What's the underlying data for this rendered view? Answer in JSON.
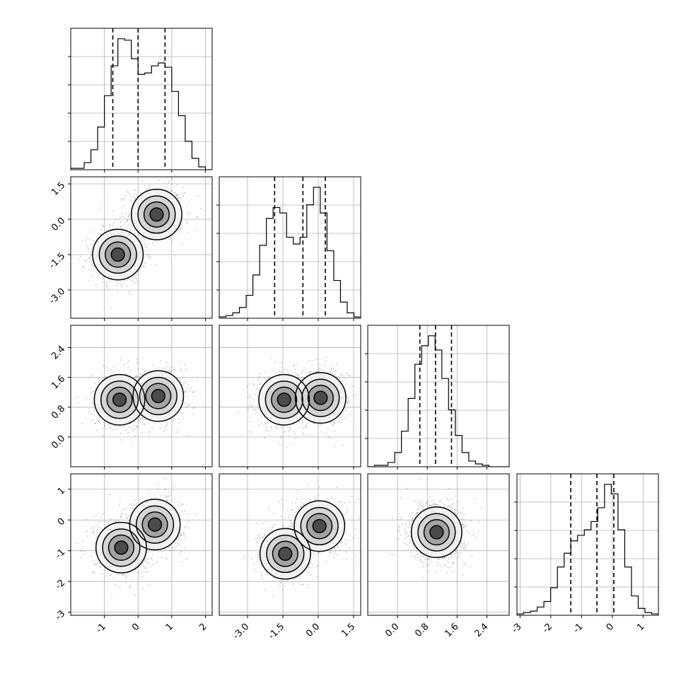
{
  "chart_data": {
    "type": "corner",
    "title": "",
    "parameters": 4,
    "tick_labels": [
      [
        "-1",
        "0",
        "1",
        "2"
      ],
      [
        "-3.0",
        "-1.5",
        "0.0",
        "1.5"
      ],
      [
        "0.0",
        "0.8",
        "1.6",
        "2.4"
      ],
      [
        "-3",
        "-2",
        "-1",
        "0",
        "1"
      ]
    ],
    "ticks": [
      [
        -1,
        0,
        1,
        2
      ],
      [
        -3.0,
        -1.5,
        0.0,
        1.5
      ],
      [
        0.0,
        0.8,
        1.6,
        2.4
      ],
      [
        -3,
        -2,
        -1,
        0,
        1
      ]
    ],
    "ranges": [
      [
        -2.0,
        2.2
      ],
      [
        -4.2,
        1.8
      ],
      [
        -0.8,
        3.0
      ],
      [
        -3.1,
        1.5
      ]
    ],
    "quantiles": [
      [
        -0.75,
        0.0,
        0.8
      ],
      [
        -1.85,
        -0.65,
        0.3
      ],
      [
        0.6,
        1.02,
        1.45
      ],
      [
        -1.35,
        -0.5,
        0.05
      ]
    ],
    "histograms": [
      {
        "counts": [
          1,
          1,
          5,
          14,
          30,
          52,
          73,
          92,
          91,
          78,
          67,
          68,
          73,
          75,
          72,
          55,
          38,
          20,
          8,
          2,
          0
        ]
      },
      {
        "counts": [
          1,
          2,
          4,
          8,
          17,
          32,
          54,
          74,
          82,
          78,
          60,
          55,
          60,
          84,
          97,
          78,
          50,
          28,
          12,
          4,
          1
        ]
      },
      {
        "counts": [
          0,
          1,
          1,
          3,
          10,
          25,
          48,
          72,
          85,
          92,
          82,
          62,
          40,
          22,
          10,
          4,
          2,
          1,
          0,
          0,
          0
        ]
      },
      {
        "counts": [
          1,
          2,
          3,
          6,
          10,
          20,
          35,
          45,
          54,
          58,
          62,
          68,
          78,
          95,
          88,
          62,
          35,
          14,
          5,
          2,
          1
        ]
      }
    ],
    "grid": true,
    "modes": {
      "0": [
        [
          -0.6,
          -1.5
        ],
        [
          0.55,
          0.2
        ]
      ],
      "1": [
        [
          -0.55,
          1.0
        ],
        [
          0.6,
          1.1
        ]
      ],
      "2": [
        [
          -1.45,
          1.0
        ],
        [
          0.1,
          1.05
        ]
      ],
      "3": [
        [
          -0.5,
          -0.9
        ],
        [
          0.5,
          -0.15
        ]
      ],
      "4": [
        [
          -1.4,
          -1.1
        ],
        [
          0.05,
          -0.2
        ]
      ],
      "5": [
        [
          1.05,
          -0.4
        ]
      ]
    }
  }
}
